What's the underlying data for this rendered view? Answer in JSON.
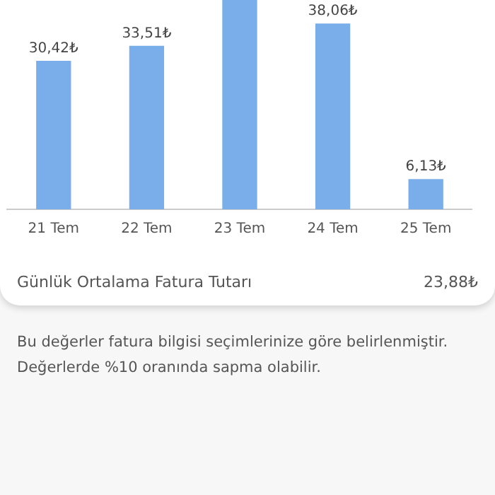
{
  "chart_data": {
    "type": "bar",
    "categories": [
      "21 Tem",
      "22 Tem",
      "23 Tem",
      "24 Tem",
      "25 Tem"
    ],
    "values": [
      30.42,
      33.51,
      43,
      38.06,
      6.13
    ],
    "value_labels": [
      "30,42₺",
      "33,51₺",
      null,
      "38,06₺",
      "6,13₺"
    ],
    "color": "#7aaeea",
    "grid": false,
    "legend": false,
    "tick_labels": "x",
    "annotations": [
      "Günlük Ortalama Fatura Tutarı",
      "23,88₺",
      "Bu değerler fatura bilgisi seçimlerinize göre belirlenmiştir. Değerlerde %10 oranında sapma olabilir."
    ]
  }
}
